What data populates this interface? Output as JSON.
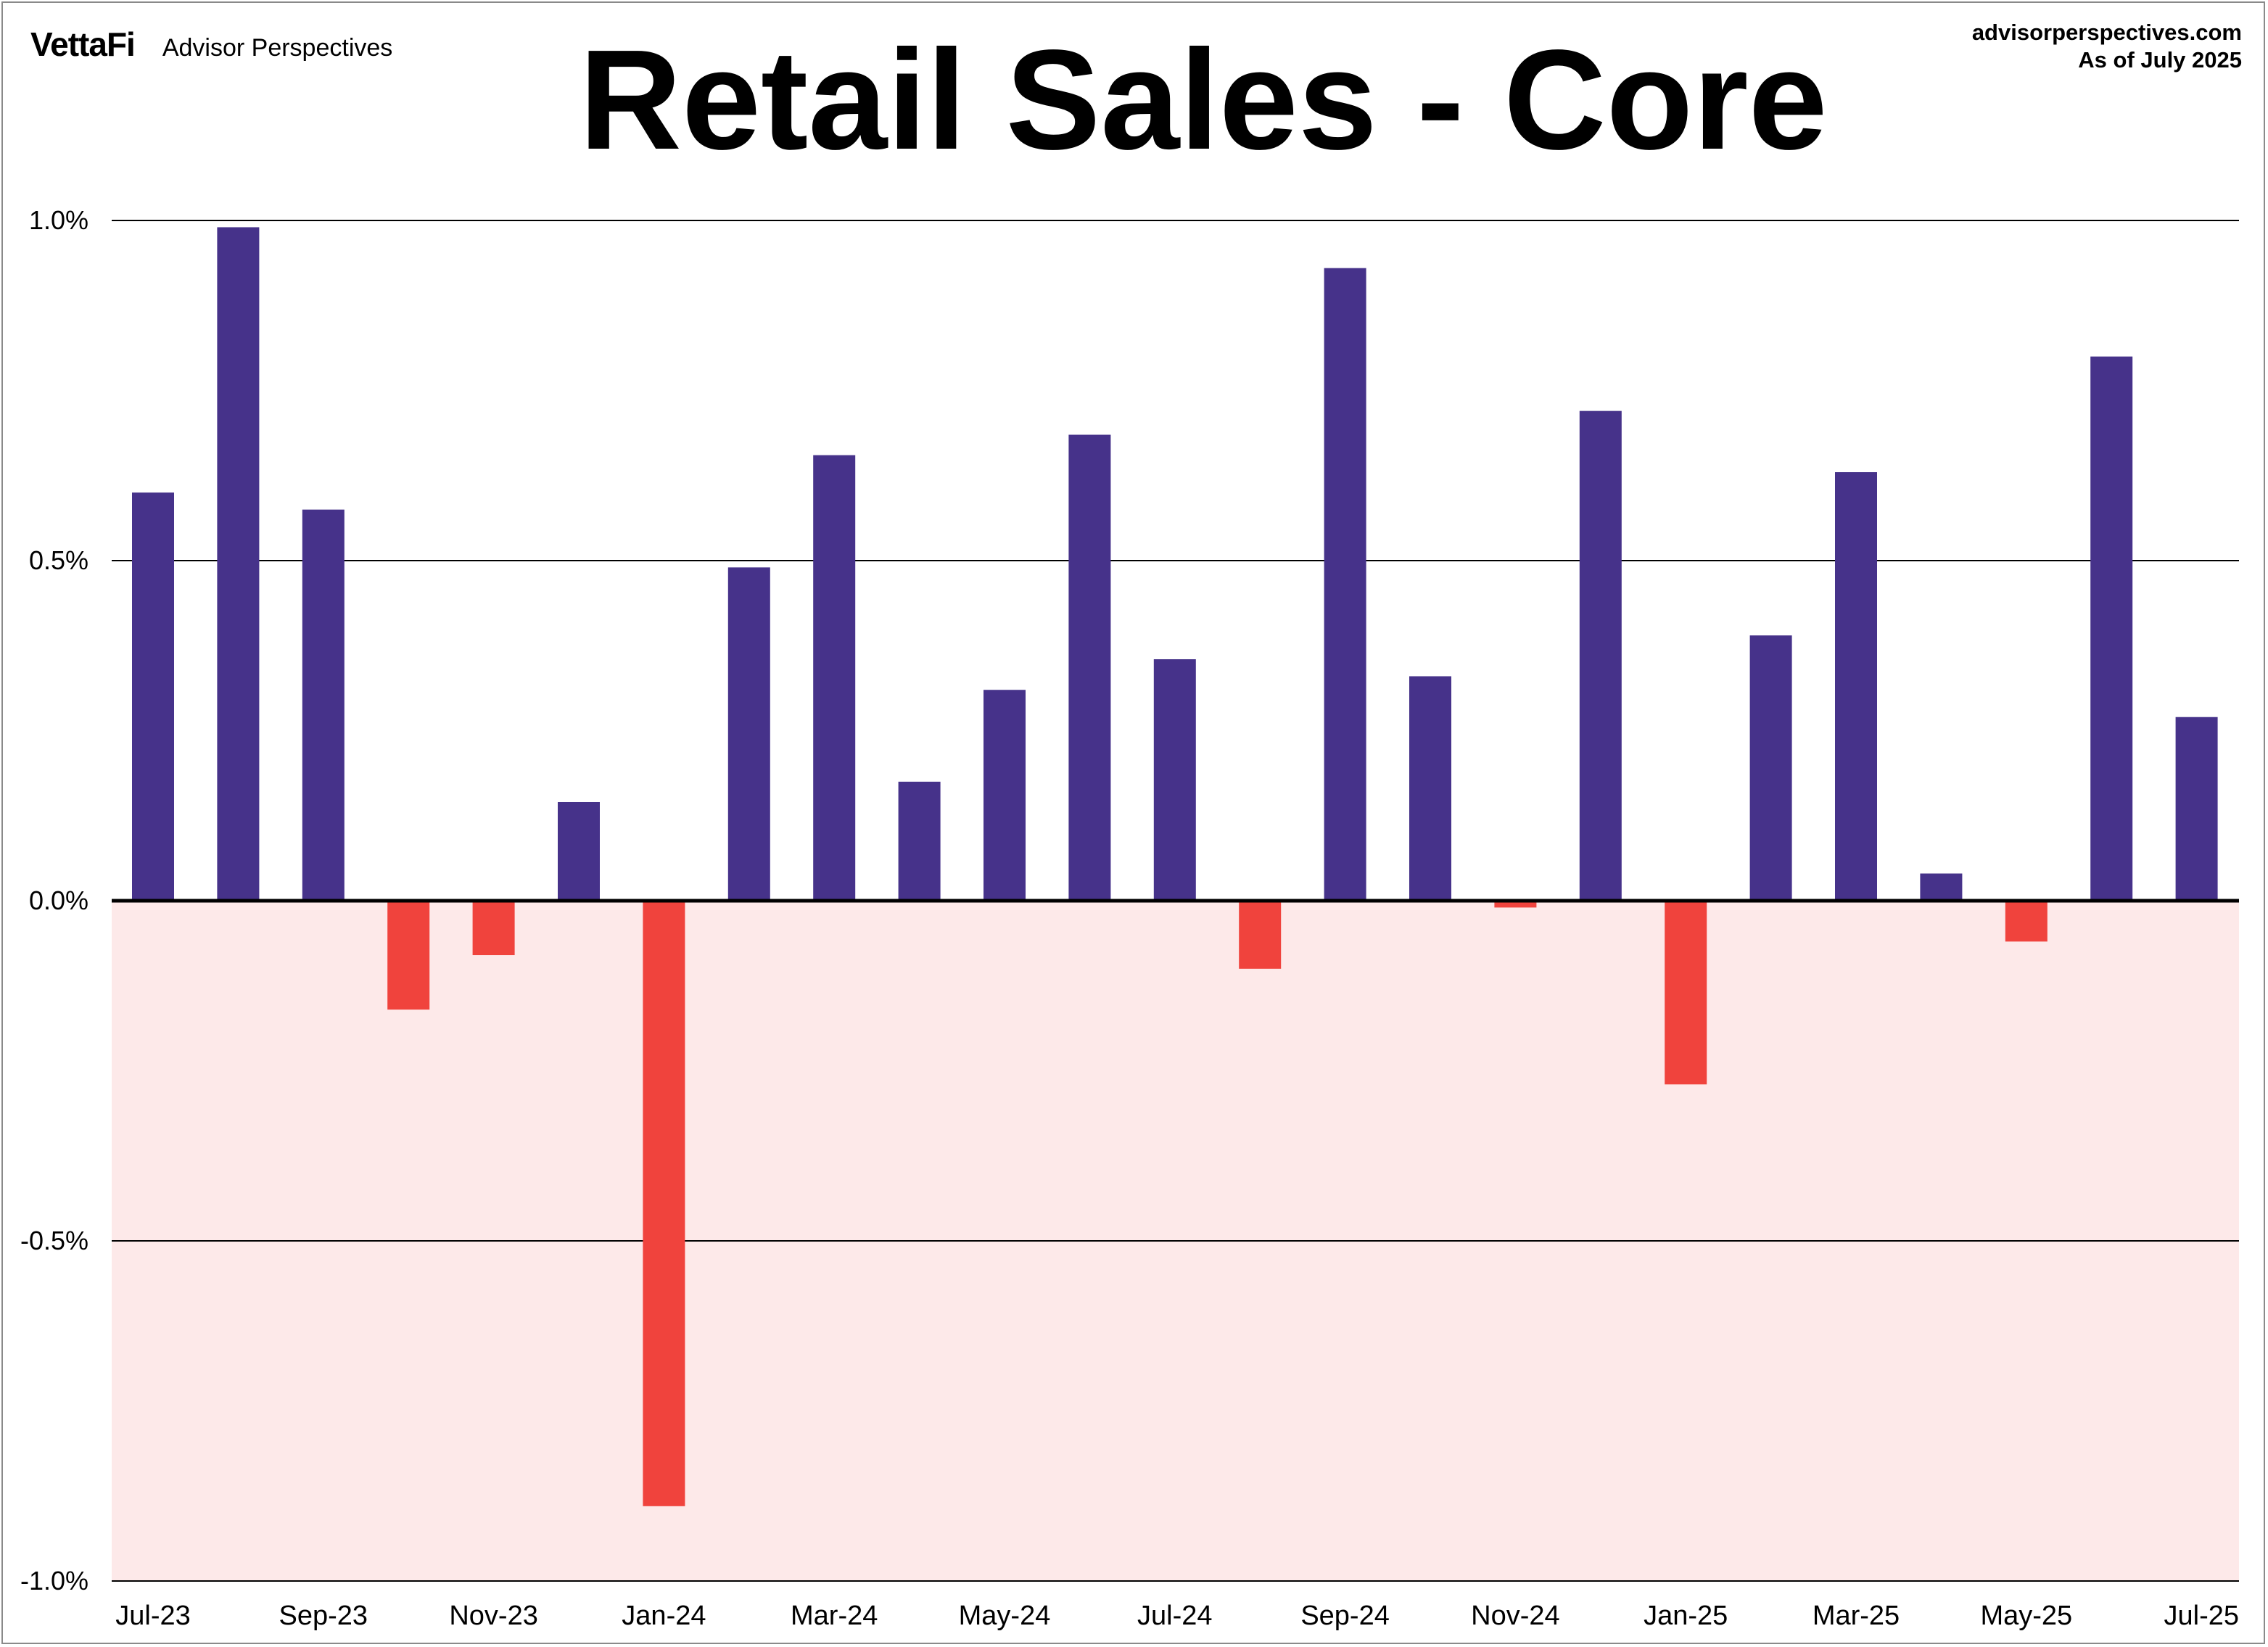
{
  "header": {
    "brand_logo": "VettaFi",
    "brand_sub": "Advisor Perspectives",
    "source_url": "advisorperspectives.com",
    "as_of": "As of July 2025"
  },
  "colors": {
    "positive": "#46328a",
    "negative": "#f0433d",
    "negative_zone": "#fde9e9"
  },
  "chart_data": {
    "type": "bar",
    "title": "Retail Sales - Core",
    "xlabel": "",
    "ylabel": "",
    "ylim": [
      -1.0,
      1.0
    ],
    "yticks": [
      1.0,
      0.5,
      0.0,
      -0.5,
      -1.0
    ],
    "ytick_labels": [
      "1.0%",
      "0.5%",
      "0.0%",
      "-0.5%",
      "-1.0%"
    ],
    "grid": true,
    "legend": "none",
    "categories": [
      "Jul-23",
      "Aug-23",
      "Sep-23",
      "Oct-23",
      "Nov-23",
      "Dec-23",
      "Jan-24",
      "Feb-24",
      "Mar-24",
      "Apr-24",
      "May-24",
      "Jun-24",
      "Jul-24",
      "Aug-24",
      "Sep-24",
      "Oct-24",
      "Nov-24",
      "Dec-24",
      "Jan-25",
      "Feb-25",
      "Mar-25",
      "Apr-25",
      "May-25",
      "Jun-25",
      "Jul-25"
    ],
    "xtick_labels": [
      "Jul-23",
      "Sep-23",
      "Nov-23",
      "Jan-24",
      "Mar-24",
      "May-24",
      "Jul-24",
      "Sep-24",
      "Nov-24",
      "Jan-25",
      "Mar-25",
      "May-25",
      "Jul-25"
    ],
    "values": [
      0.6,
      0.99,
      0.575,
      -0.16,
      -0.08,
      0.145,
      -0.89,
      0.49,
      0.655,
      0.175,
      0.31,
      0.685,
      0.355,
      -0.1,
      0.93,
      0.33,
      -0.01,
      0.72,
      -0.27,
      0.39,
      0.63,
      0.04,
      -0.06,
      0.8,
      0.27
    ]
  }
}
